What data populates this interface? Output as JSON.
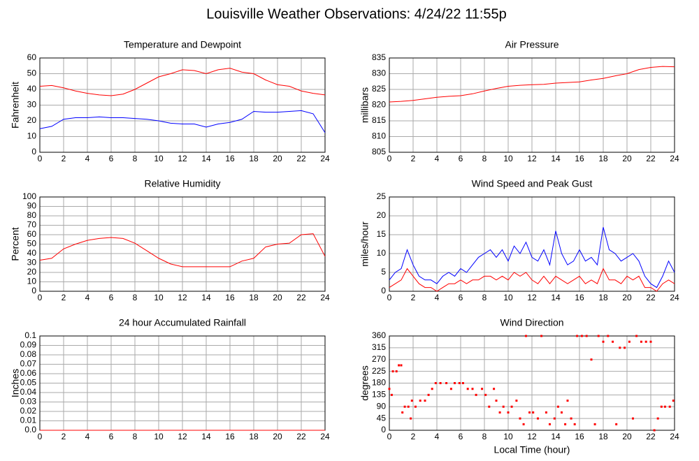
{
  "title": "Louisville Weather Observations: 4/24/22 11:55p",
  "chart_data": [
    {
      "type": "line",
      "title": "Temperature and Dewpoint",
      "y_label": "Fahrenheit",
      "x": [
        0,
        1,
        2,
        3,
        4,
        5,
        6,
        7,
        8,
        9,
        10,
        11,
        12,
        13,
        14,
        15,
        16,
        17,
        18,
        19,
        20,
        21,
        22,
        23,
        24
      ],
      "series": [
        {
          "color": "#ff0000",
          "values": [
            42,
            42.5,
            41,
            39,
            37.5,
            36.5,
            36,
            37,
            40,
            44,
            48,
            50,
            52.5,
            52,
            50,
            52.5,
            53.5,
            51,
            50,
            46,
            43,
            42,
            39,
            37.5,
            36.5
          ]
        },
        {
          "color": "#0000ff",
          "values": [
            15,
            16.5,
            21,
            22,
            22,
            22.5,
            22,
            22,
            21.5,
            21,
            20,
            18.5,
            18,
            18,
            16,
            18,
            19,
            21,
            26,
            25.5,
            25.5,
            26,
            26.5,
            24.5,
            12.5
          ]
        }
      ],
      "xlim": [
        0,
        24
      ],
      "xticks": [
        0,
        2,
        4,
        6,
        8,
        10,
        12,
        14,
        16,
        18,
        20,
        22,
        24
      ],
      "ylim": [
        0,
        60
      ],
      "yticks": [
        0,
        10,
        20,
        30,
        40,
        50,
        60
      ],
      "grid": true
    },
    {
      "type": "line",
      "title": "Air Pressure",
      "y_label": "millibars",
      "x": [
        0,
        1,
        2,
        3,
        4,
        5,
        6,
        7,
        8,
        9,
        10,
        11,
        12,
        13,
        14,
        15,
        16,
        17,
        18,
        19,
        20,
        21,
        22,
        23,
        24
      ],
      "series": [
        {
          "color": "#ff0000",
          "values": [
            821,
            821.2,
            821.5,
            822,
            822.5,
            822.8,
            823,
            823.6,
            824.5,
            825.3,
            826,
            826.3,
            826.5,
            826.6,
            827,
            827.2,
            827.4,
            828,
            828.5,
            829.3,
            830,
            831.3,
            832,
            832.3,
            832.2
          ]
        }
      ],
      "xlim": [
        0,
        24
      ],
      "xticks": [
        0,
        2,
        4,
        6,
        8,
        10,
        12,
        14,
        16,
        18,
        20,
        22,
        24
      ],
      "ylim": [
        805,
        835
      ],
      "yticks": [
        805,
        810,
        815,
        820,
        825,
        830,
        835
      ],
      "grid": true
    },
    {
      "type": "line",
      "title": "Relative Humidity",
      "y_label": "Percent",
      "x": [
        0,
        1,
        2,
        3,
        4,
        5,
        6,
        7,
        8,
        9,
        10,
        11,
        12,
        13,
        14,
        15,
        16,
        17,
        18,
        19,
        20,
        21,
        22,
        23,
        24
      ],
      "series": [
        {
          "color": "#ff0000",
          "values": [
            33,
            35,
            45,
            50,
            54,
            56,
            57,
            56,
            51,
            43,
            35,
            29,
            26,
            26,
            26,
            26,
            26,
            32,
            35,
            47,
            50,
            51,
            60,
            61,
            37
          ]
        }
      ],
      "xlim": [
        0,
        24
      ],
      "xticks": [
        0,
        2,
        4,
        6,
        8,
        10,
        12,
        14,
        16,
        18,
        20,
        22,
        24
      ],
      "ylim": [
        0,
        100
      ],
      "yticks": [
        0,
        10,
        20,
        30,
        40,
        50,
        60,
        70,
        80,
        90,
        100
      ],
      "grid": true
    },
    {
      "type": "line",
      "title": "Wind Speed and Peak Gust",
      "y_label": "miles/hour",
      "x": [
        0,
        0.5,
        1,
        1.5,
        2,
        2.5,
        3,
        3.5,
        4,
        4.5,
        5,
        5.5,
        6,
        6.5,
        7,
        7.5,
        8,
        8.5,
        9,
        9.5,
        10,
        10.5,
        11,
        11.5,
        12,
        12.5,
        13,
        13.5,
        14,
        14.5,
        15,
        15.5,
        16,
        16.5,
        17,
        17.5,
        18,
        18.5,
        19,
        19.5,
        20,
        20.5,
        21,
        21.5,
        22,
        22.5,
        23,
        23.5,
        24
      ],
      "series": [
        {
          "color": "#0000ff",
          "values": [
            3,
            5,
            6,
            11,
            7,
            4,
            3,
            3,
            2,
            4,
            5,
            4,
            6,
            5,
            7,
            9,
            10,
            11,
            9,
            11,
            8,
            12,
            10,
            13,
            9,
            8,
            11,
            7,
            16,
            10,
            7,
            8,
            11,
            8,
            9,
            7,
            17,
            11,
            10,
            8,
            9,
            10,
            8,
            4,
            2,
            1,
            4,
            8,
            5
          ]
        },
        {
          "color": "#ff0000",
          "values": [
            1,
            2,
            3,
            6,
            4,
            2,
            1,
            1,
            0,
            1,
            2,
            2,
            3,
            2,
            3,
            3,
            4,
            4,
            3,
            4,
            3,
            5,
            4,
            5,
            3,
            2,
            4,
            2,
            4,
            3,
            2,
            3,
            4,
            2,
            3,
            2,
            6,
            3,
            3,
            2,
            4,
            3,
            4,
            1,
            1,
            0,
            2,
            3,
            2
          ]
        }
      ],
      "xlim": [
        0,
        24
      ],
      "xticks": [
        0,
        2,
        4,
        6,
        8,
        10,
        12,
        14,
        16,
        18,
        20,
        22,
        24
      ],
      "ylim": [
        0,
        25
      ],
      "yticks": [
        0,
        5,
        10,
        15,
        20,
        25
      ],
      "grid": true
    },
    {
      "type": "line",
      "title": "24 hour Accumulated Rainfall",
      "y_label": "Inches",
      "x": [
        0,
        24
      ],
      "series": [
        {
          "color": "#ff0000",
          "values": [
            0,
            0
          ]
        }
      ],
      "xlim": [
        0,
        24
      ],
      "xticks": [
        0,
        2,
        4,
        6,
        8,
        10,
        12,
        14,
        16,
        18,
        20,
        22,
        24
      ],
      "ylim": [
        0,
        0.1
      ],
      "yticks": [
        {
          "value": 0,
          "label": "0.0"
        },
        0.01,
        0.02,
        0.03,
        0.04,
        0.05,
        0.06,
        0.07,
        0.08,
        0.09,
        0.1
      ],
      "grid": true
    },
    {
      "type": "scatter",
      "title": "Wind Direction",
      "y_label": "degrees",
      "x_label": "Local Time (hour)",
      "x": [
        0,
        0.2,
        0.3,
        0.6,
        0.8,
        1,
        1.1,
        1.3,
        1.6,
        1.8,
        1.9,
        2.2,
        2.6,
        3,
        3.3,
        3.6,
        3.9,
        4.3,
        4.8,
        5.2,
        5.5,
        5.9,
        6.2,
        6.6,
        7,
        7.3,
        7.8,
        8.1,
        8.4,
        8.8,
        9,
        9.3,
        9.6,
        10,
        10.3,
        10.7,
        11,
        11.3,
        11.5,
        11.8,
        12.1,
        12.5,
        12.8,
        13.2,
        13.5,
        13.9,
        14.2,
        14.5,
        14.8,
        15,
        15.3,
        15.6,
        15.8,
        16.2,
        16.6,
        17,
        17.3,
        17.6,
        18,
        18.4,
        18.8,
        19.1,
        19.4,
        19.8,
        20.2,
        20.5,
        20.8,
        21.2,
        21.6,
        22,
        22.3,
        22.6,
        22.9,
        23.2,
        23.6,
        23.9
      ],
      "series": [
        {
          "color": "#ff0000",
          "values": [
            158,
            135,
            225,
            225,
            248,
            248,
            68,
            90,
            90,
            45,
            113,
            90,
            113,
            113,
            135,
            158,
            180,
            180,
            180,
            158,
            180,
            180,
            180,
            158,
            158,
            135,
            158,
            135,
            90,
            158,
            113,
            68,
            90,
            68,
            90,
            113,
            45,
            23,
            360,
            68,
            68,
            45,
            360,
            68,
            23,
            45,
            90,
            68,
            23,
            113,
            45,
            23,
            360,
            360,
            360,
            270,
            23,
            360,
            338,
            360,
            338,
            23,
            315,
            315,
            338,
            45,
            360,
            338,
            338,
            338,
            0,
            45,
            90,
            90,
            90,
            113
          ]
        }
      ],
      "xlim": [
        0,
        24
      ],
      "xticks": [
        0,
        2,
        4,
        6,
        8,
        10,
        12,
        14,
        16,
        18,
        20,
        22,
        24
      ],
      "ylim": [
        0,
        360
      ],
      "yticks": [
        0,
        45,
        90,
        135,
        180,
        225,
        270,
        315,
        360
      ],
      "grid": true
    }
  ]
}
